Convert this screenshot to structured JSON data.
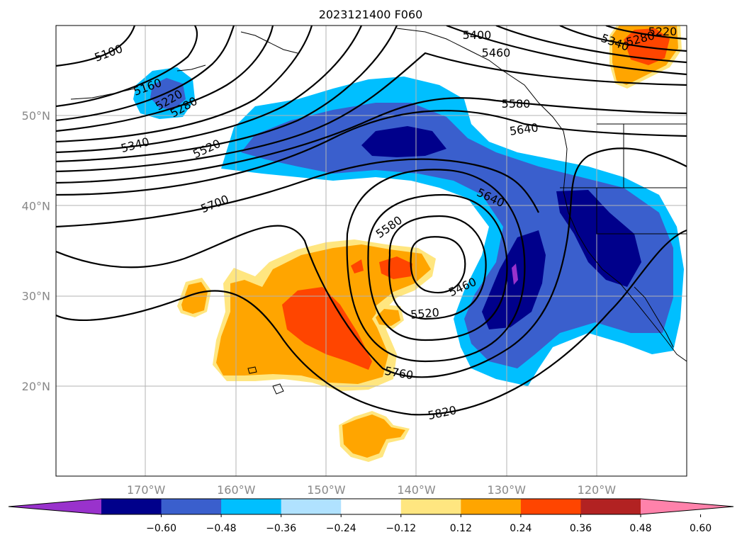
{
  "title": "2023121400 F060",
  "lat_ticks": [
    {
      "lat": 50,
      "label": "50°N"
    },
    {
      "lat": 40,
      "label": "40°N"
    },
    {
      "lat": 30,
      "label": "30°N"
    },
    {
      "lat": 20,
      "label": "20°N"
    }
  ],
  "lon_ticks": [
    {
      "lon": -170,
      "label": "170°W"
    },
    {
      "lon": -160,
      "label": "160°W"
    },
    {
      "lon": -150,
      "label": "150°W"
    },
    {
      "lon": -140,
      "label": "140°W"
    },
    {
      "lon": -130,
      "label": "130°W"
    },
    {
      "lon": -120,
      "label": "120°W"
    }
  ],
  "colorbar": {
    "levels": [
      "−0.60",
      "−0.48",
      "−0.36",
      "−0.24",
      "−0.12",
      "0.12",
      "0.24",
      "0.36",
      "0.48",
      "0.60"
    ],
    "colors": [
      "#9932cc",
      "#00008b",
      "#3a5fcd",
      "#00bfff",
      "#b0e2ff",
      "#ffffff",
      "#ffe680",
      "#ffa500",
      "#ff4500",
      "#b22222",
      "#ff82ab"
    ]
  },
  "contour_labels": [
    "5100",
    "5160",
    "5220",
    "5280",
    "5340",
    "5400",
    "5460",
    "5520",
    "5580",
    "5640",
    "5700",
    "5760",
    "5820"
  ],
  "shading_colors": {
    "light_blue": "#00bfff",
    "mid_blue": "#3a5fcd",
    "dark_blue": "#00008b",
    "light_orange": "#ffe680",
    "orange": "#ffa500",
    "red_orange": "#ff4500",
    "purple": "#9932cc"
  }
}
